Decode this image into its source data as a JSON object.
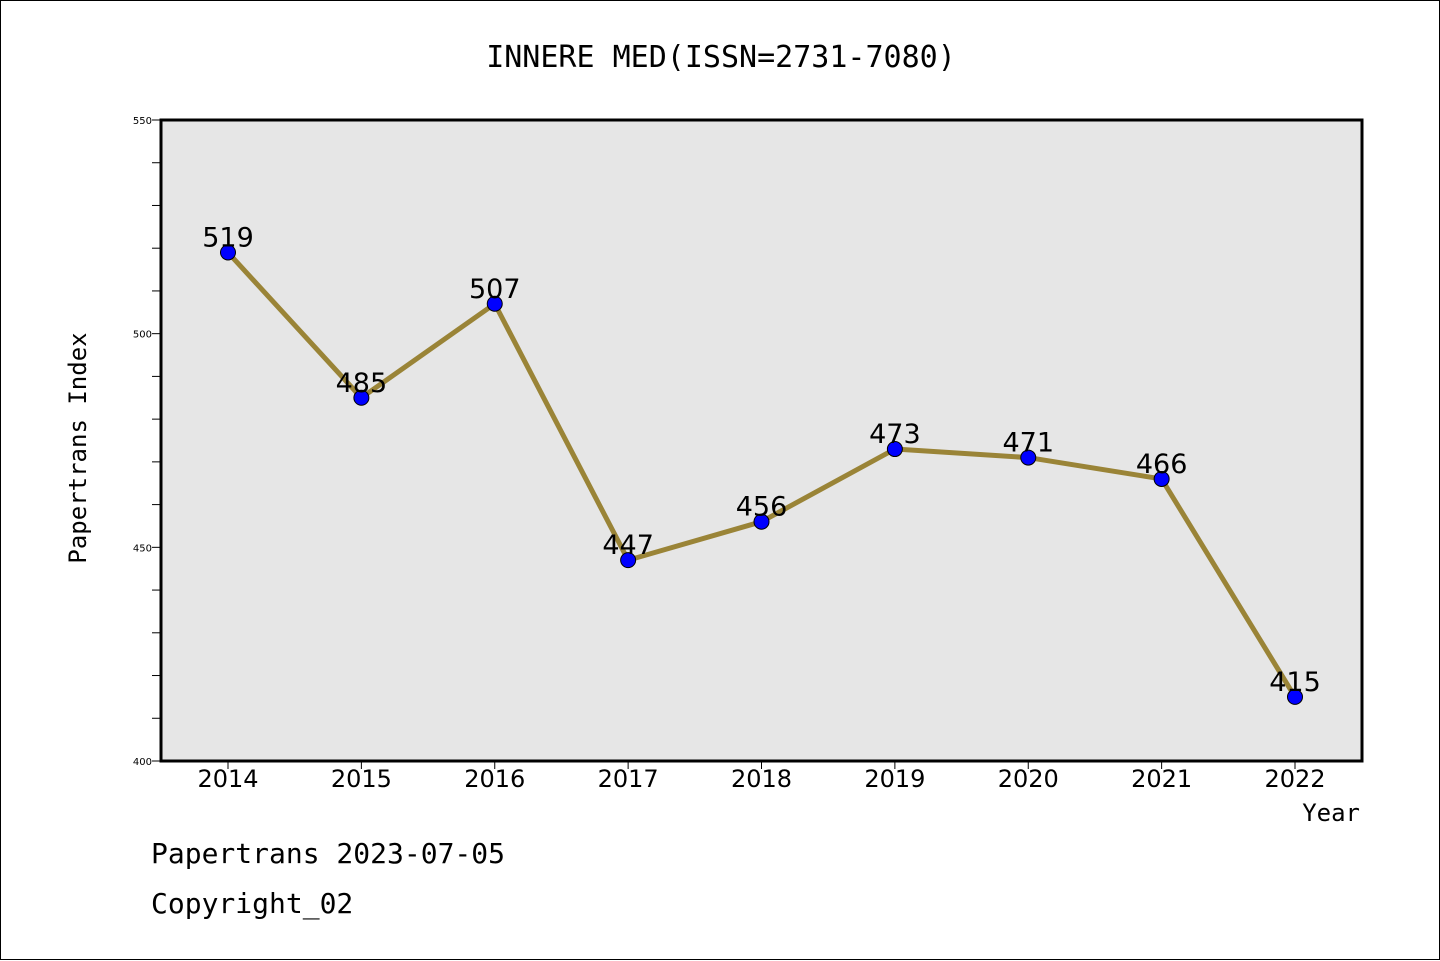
{
  "chart_data": {
    "type": "line",
    "title": "INNERE MED(ISSN=2731-7080)",
    "xlabel": "Year",
    "ylabel": "Papertrans Index",
    "categories": [
      "2014",
      "2015",
      "2016",
      "2017",
      "2018",
      "2019",
      "2020",
      "2021",
      "2022"
    ],
    "series": [
      {
        "values": [
          519,
          485,
          507,
          447,
          456,
          473,
          471,
          466,
          415
        ]
      }
    ],
    "ylim": [
      400,
      550
    ],
    "yticks": [
      400,
      450,
      500,
      550
    ],
    "y_minor_step": 10,
    "grid": false,
    "data_labels": true,
    "colors": {
      "line": "#9a8437",
      "marker": "#0000ff",
      "plot_bg": "#e6e6e6"
    }
  },
  "footer": {
    "line1": "Papertrans 2023-07-05",
    "line2": "Copyright_02"
  }
}
